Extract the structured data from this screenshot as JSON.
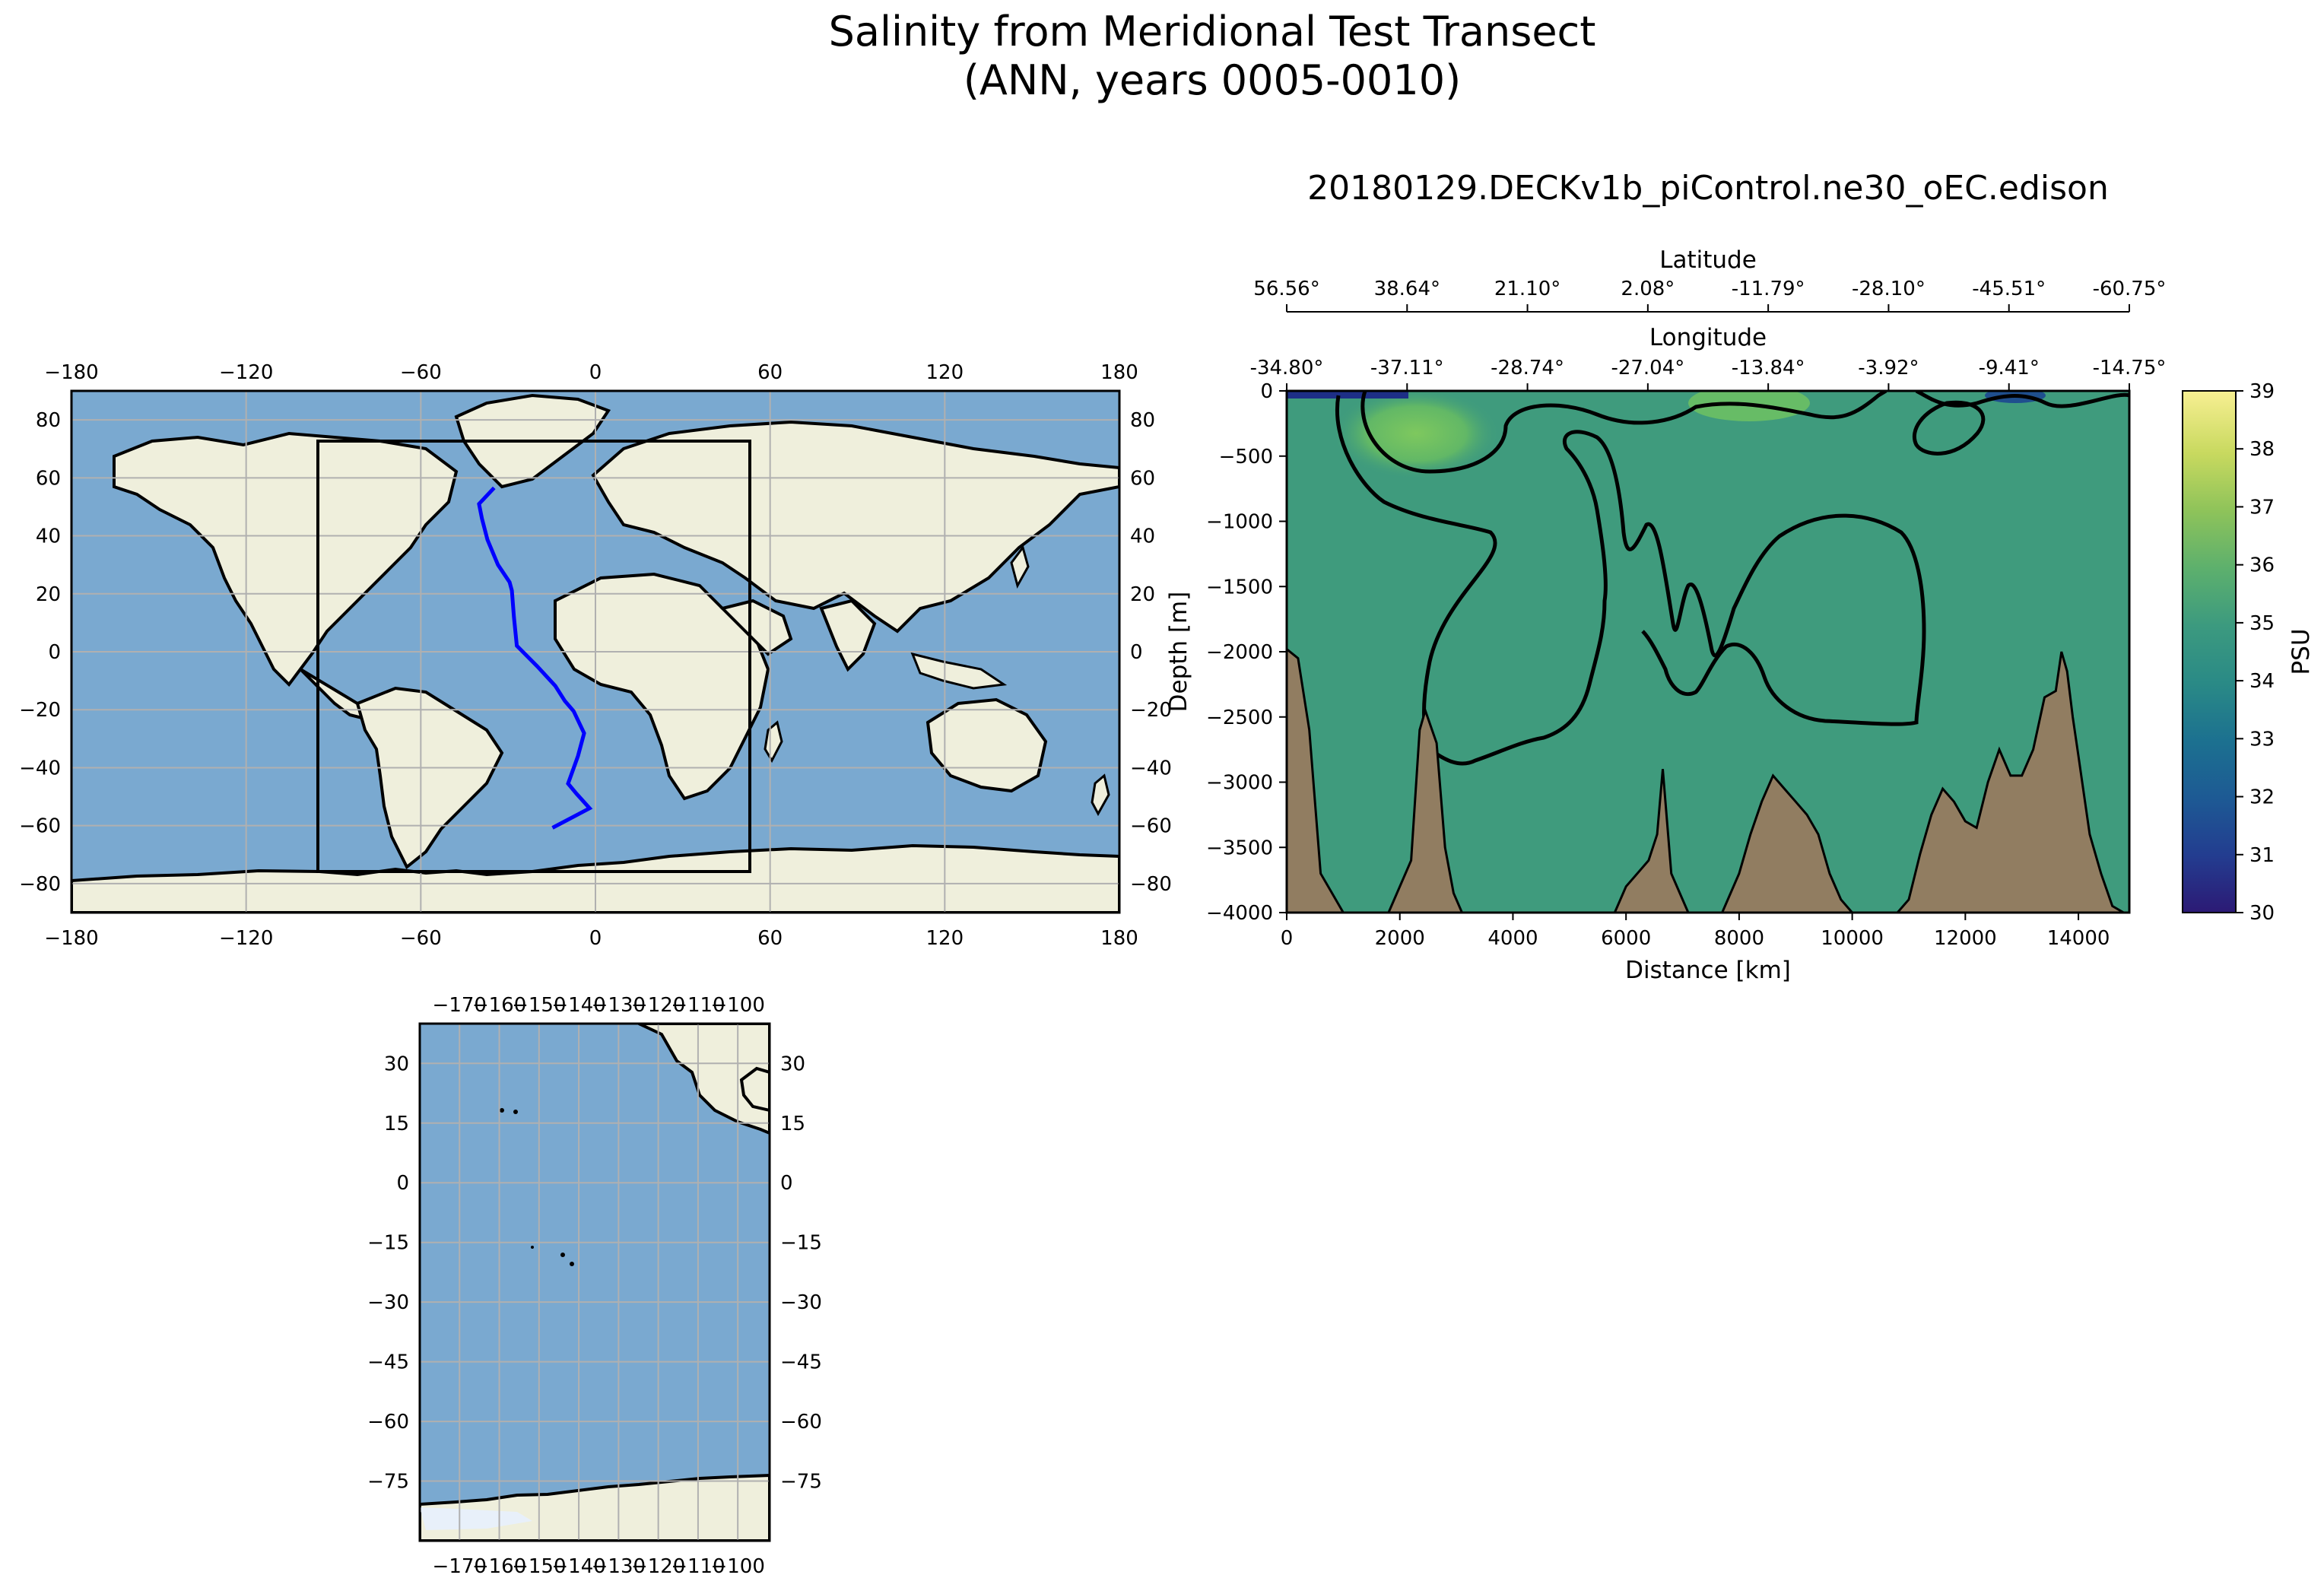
{
  "figure": {
    "title_line1": "Salinity from Meridional Test Transect",
    "title_line2": "(ANN, years 0005-0010)"
  },
  "chart_data": [
    {
      "type": "map",
      "name": "global-map",
      "projection": "PlateCarree",
      "xlim": [
        -180,
        180
      ],
      "ylim": [
        -90,
        90
      ],
      "x_ticks": [
        -180,
        -120,
        -60,
        0,
        60,
        120,
        180
      ],
      "y_ticks": [
        -80,
        -60,
        -40,
        -20,
        0,
        20,
        40,
        60,
        80
      ],
      "x_tick_labels": [
        "−180",
        "−120",
        "−60",
        "0",
        "60",
        "120",
        "180"
      ],
      "y_tick_labels": [
        "−80",
        "−60",
        "−40",
        "−20",
        "0",
        "20",
        "40",
        "60",
        "80"
      ],
      "grid": true,
      "colors": {
        "ocean": "#7aa9d0",
        "land": "#efefdc",
        "transect": "#0000ff",
        "box": "#000000",
        "grid": "#b0b0b0"
      },
      "transect_path": {
        "lon": [
          -34.8,
          -40.0,
          -39.0,
          -37.1,
          -33.5,
          -29.5,
          -28.7,
          -28.0,
          -27.0,
          -20.0,
          -13.8,
          -10.5,
          -7.5,
          -3.9,
          -6.0,
          -9.4,
          -6.5,
          -2.0,
          -14.75
        ],
        "lat": [
          56.56,
          51.0,
          46.0,
          38.64,
          30.0,
          24.0,
          21.1,
          12.0,
          2.08,
          -5.0,
          -11.79,
          -17.0,
          -20.5,
          -28.1,
          -36.0,
          -45.51,
          -49.0,
          -54.0,
          -60.75
        ]
      },
      "region_box": {
        "lon": [
          -95,
          55
        ],
        "lat": [
          -75,
          72
        ]
      }
    },
    {
      "type": "heatmap",
      "name": "transect-section",
      "title": "20180129.DECKv1b_piControl.ne30_oEC.edison",
      "xlabel": "Distance [km]",
      "ylabel": "Depth [m]",
      "xlim": [
        0,
        14900
      ],
      "ylim": [
        -4000,
        0
      ],
      "x_ticks": [
        0,
        2000,
        4000,
        6000,
        8000,
        10000,
        12000,
        14000
      ],
      "x_tick_labels": [
        "0",
        "2000",
        "4000",
        "6000",
        "8000",
        "10000",
        "12000",
        "14000"
      ],
      "y_ticks": [
        0,
        -500,
        -1000,
        -1500,
        -2000,
        -2500,
        -3000,
        -3500,
        -4000
      ],
      "y_tick_labels": [
        "0",
        "−500",
        "−1000",
        "−1500",
        "−2000",
        "−2500",
        "−3000",
        "−3500",
        "−4000"
      ],
      "top_axis_1": {
        "label": "Latitude",
        "tick_labels": [
          "56.56°",
          "38.64°",
          "21.10°",
          "2.08°",
          "-11.79°",
          "-28.10°",
          "-45.51°",
          "-60.75°"
        ]
      },
      "top_axis_2": {
        "label": "Longitude",
        "tick_labels": [
          "-34.80°",
          "-37.11°",
          "-28.74°",
          "-27.04°",
          "-13.84°",
          "-3.92°",
          "-9.41°",
          "-14.75°"
        ]
      },
      "colorbar": {
        "label": "PSU",
        "range": [
          30,
          39
        ],
        "ticks": [
          "30",
          "31",
          "32",
          "33",
          "34",
          "35",
          "36",
          "37",
          "38",
          "39"
        ],
        "colors": [
          "#2c1a75",
          "#233d90",
          "#1d5a94",
          "#1c7190",
          "#2a8a86",
          "#3c9a7f",
          "#5db06d",
          "#8ec35a",
          "#c8d95f",
          "#f7ef92"
        ]
      },
      "contour_level": 35,
      "colors": {
        "field": "#3f9b7d",
        "high_salinity": "#66be62",
        "low_salinity": "#1d2f86",
        "bathymetry": "#917d61",
        "contour": "#000000"
      },
      "bathymetry_bottom": {
        "distance_km": [
          0,
          200,
          400,
          600,
          800,
          1000,
          1800,
          2200,
          2350,
          2450,
          2650,
          2800,
          2950,
          3100,
          5800,
          6000,
          6200,
          6400,
          6550,
          6650,
          6800,
          7100,
          7700,
          8000,
          8200,
          8400,
          8600,
          8800,
          9000,
          9200,
          9400,
          9600,
          9800,
          10000,
          10800,
          11000,
          11200,
          11400,
          11600,
          11800,
          12000,
          12200,
          12400,
          12600,
          12800,
          13000,
          13200,
          13400,
          13600,
          13700,
          13800,
          13900,
          14000,
          14200,
          14400,
          14600,
          14800,
          14900
        ],
        "depth_m": [
          -1980,
          -2050,
          -2600,
          -3700,
          -3850,
          -4000,
          -4000,
          -3600,
          -2600,
          -2450,
          -2700,
          -3500,
          -3850,
          -4000,
          -4000,
          -3800,
          -3700,
          -3600,
          -3400,
          -2900,
          -3700,
          -4000,
          -4000,
          -3700,
          -3400,
          -3150,
          -2950,
          -3050,
          -3150,
          -3250,
          -3400,
          -3700,
          -3900,
          -4000,
          -4000,
          -3900,
          -3550,
          -3250,
          -3050,
          -3150,
          -3300,
          -3350,
          -3000,
          -2750,
          -2950,
          -2950,
          -2750,
          -2350,
          -2300,
          -2000,
          -2150,
          -2500,
          -2800,
          -3400,
          -3700,
          -3950,
          -4000,
          -4000
        ]
      }
    },
    {
      "type": "map",
      "name": "regional-map",
      "projection": "PlateCarree",
      "xlim": [
        -180,
        -92
      ],
      "ylim": [
        -90,
        40
      ],
      "x_ticks": [
        -170,
        -160,
        -150,
        -140,
        -130,
        -120,
        -110,
        -100
      ],
      "x_tick_labels": [
        "−170",
        "−160",
        "−150",
        "−140",
        "−130",
        "−120",
        "−110",
        "−100"
      ],
      "y_ticks": [
        -75,
        -60,
        -45,
        -30,
        -15,
        0,
        15,
        30
      ],
      "y_tick_labels": [
        "−75",
        "−60",
        "−45",
        "−30",
        "−15",
        "0",
        "15",
        "30"
      ],
      "grid": true,
      "colors": {
        "ocean": "#7aa9d0",
        "land": "#efefdc",
        "grid": "#b0b0b0"
      }
    }
  ]
}
